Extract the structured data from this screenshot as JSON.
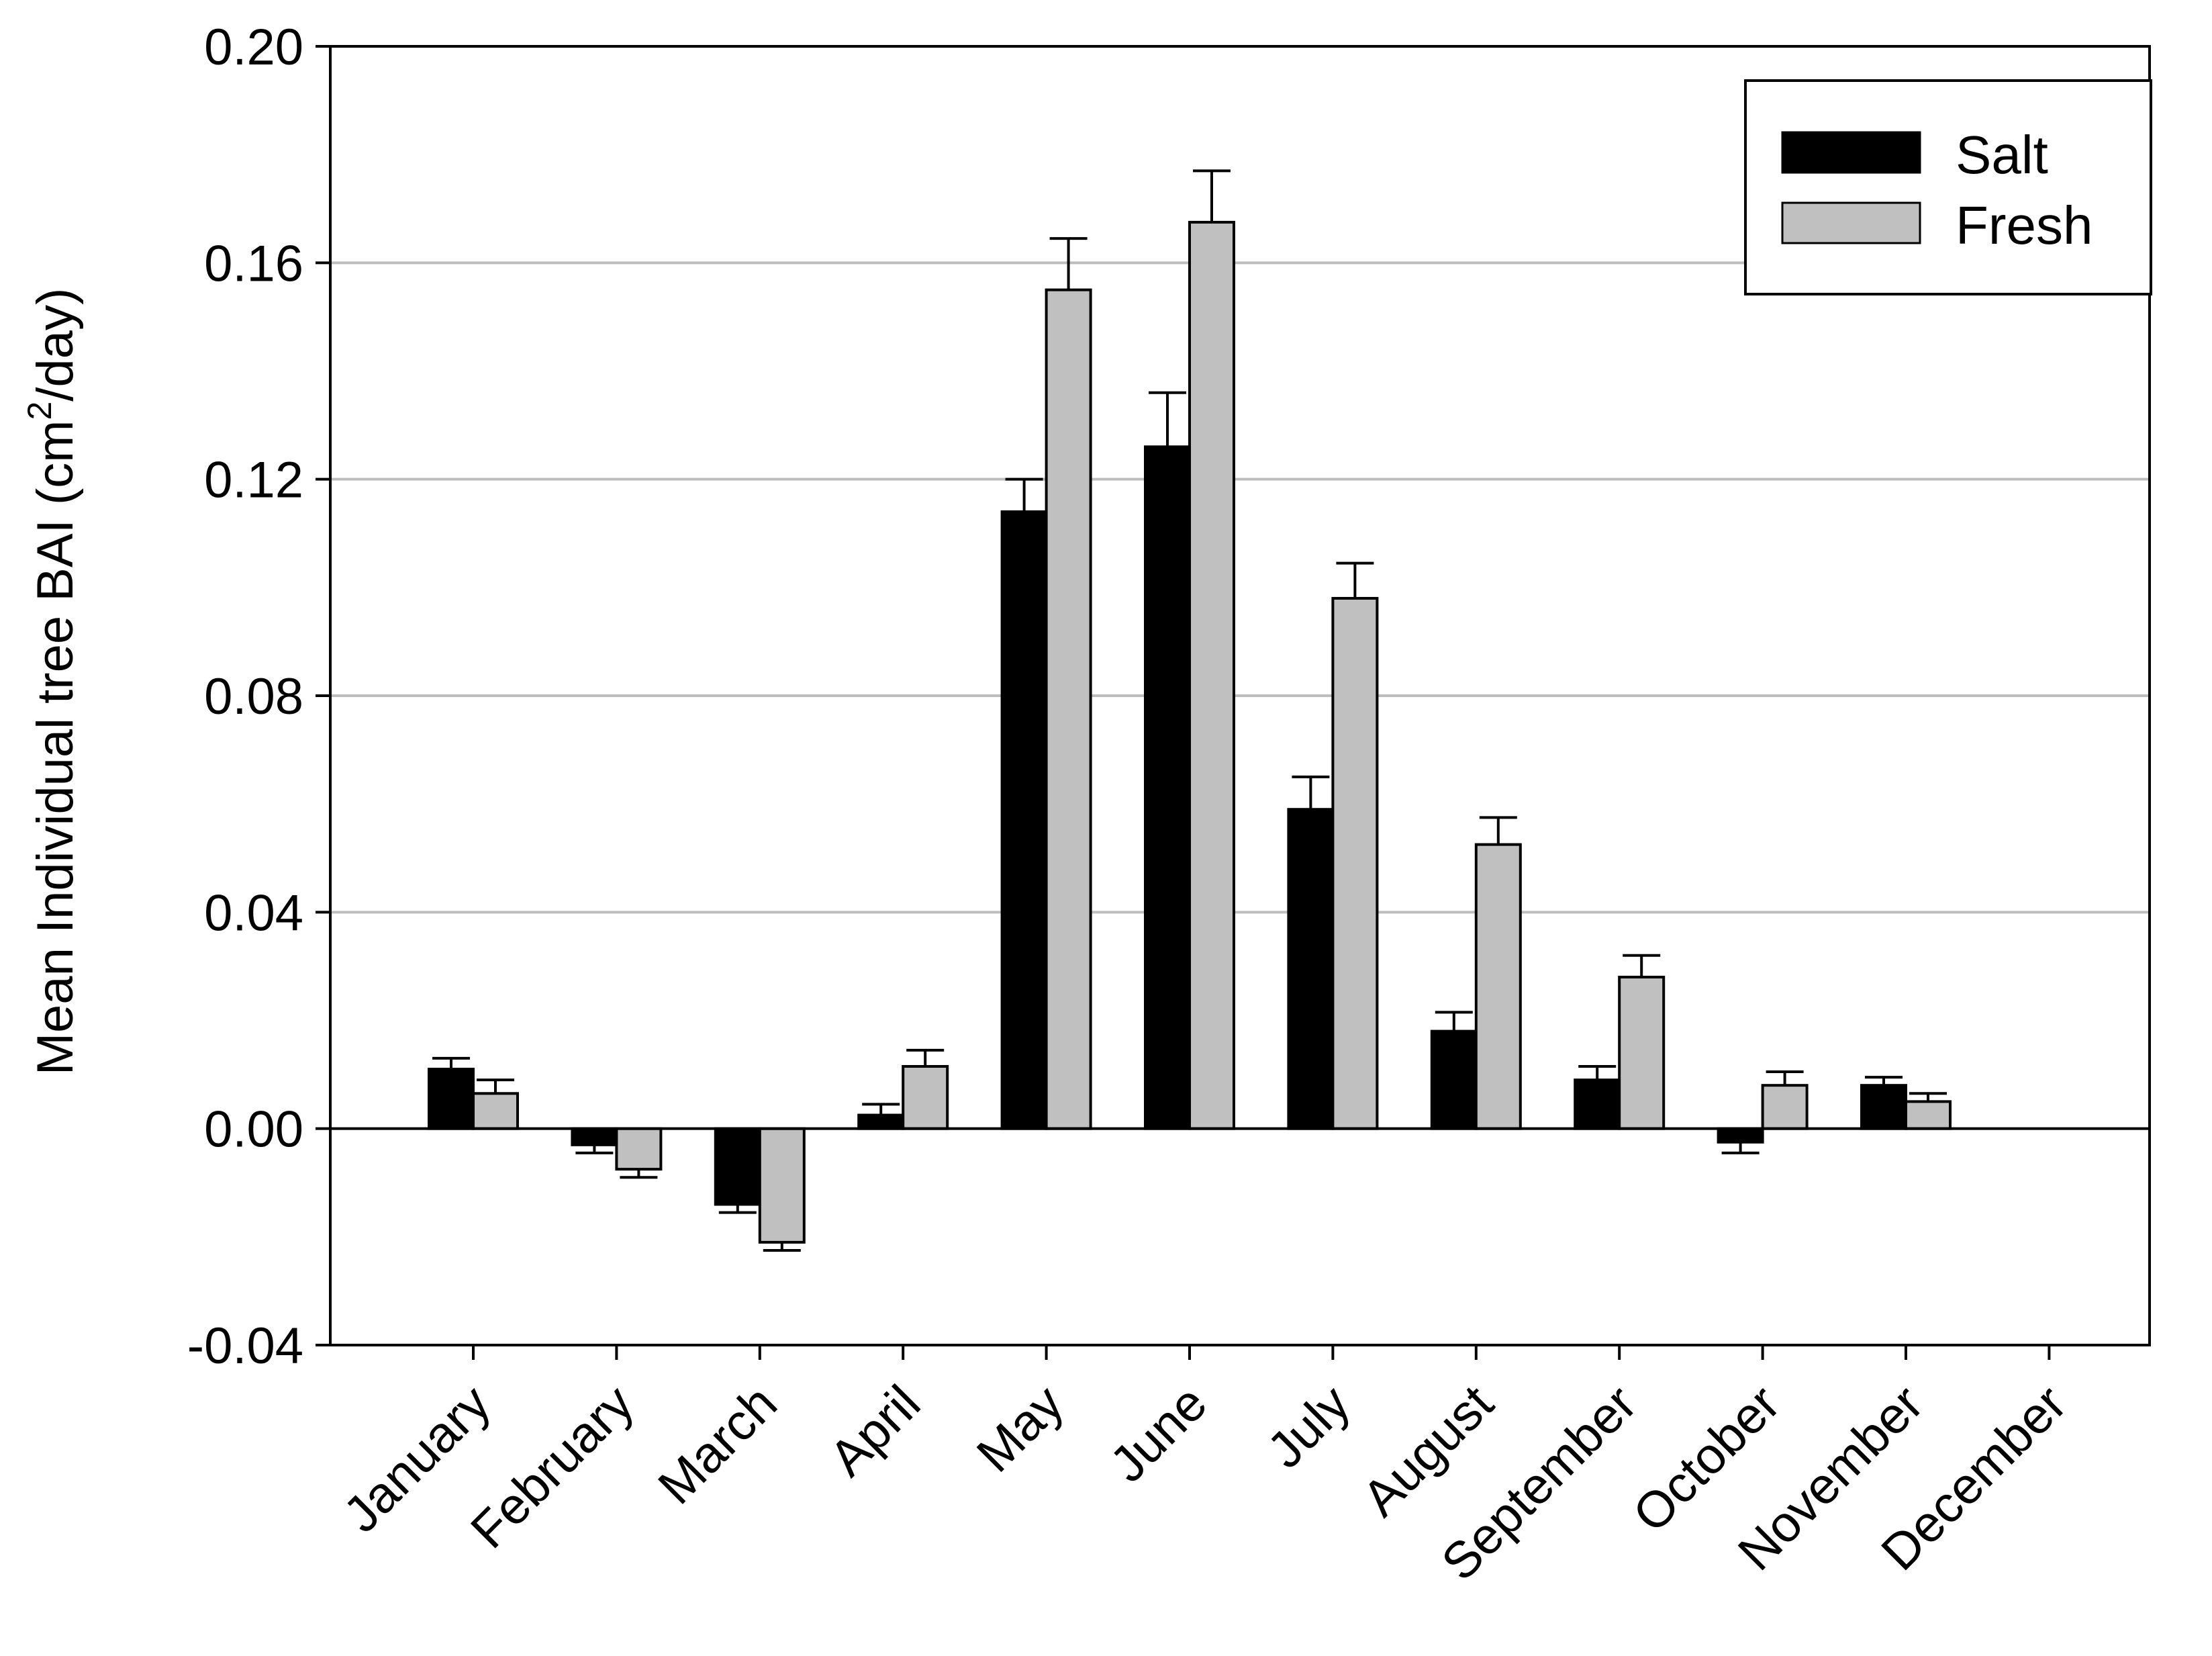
{
  "chart_data": {
    "type": "bar",
    "categories": [
      "January",
      "February",
      "March",
      "April",
      "May",
      "June",
      "July",
      "August",
      "September",
      "October",
      "November",
      "December"
    ],
    "series": [
      {
        "name": "Salt",
        "color": "#000000",
        "values": [
          0.011,
          -0.003,
          -0.014,
          0.0025,
          0.114,
          0.126,
          0.059,
          0.018,
          0.009,
          -0.0025,
          0.008,
          null
        ],
        "errors": [
          0.002,
          0.0015,
          0.0015,
          0.002,
          0.006,
          0.01,
          0.006,
          0.0035,
          0.0025,
          0.002,
          0.0015,
          null
        ]
      },
      {
        "name": "Fresh",
        "color": "#c0c0c0",
        "values": [
          0.0065,
          -0.0075,
          -0.021,
          0.0115,
          0.155,
          0.1675,
          0.098,
          0.0525,
          0.028,
          0.008,
          0.005,
          null
        ],
        "errors": [
          0.0025,
          0.0015,
          0.0015,
          0.003,
          0.0095,
          0.0095,
          0.0065,
          0.005,
          0.004,
          0.0025,
          0.0015,
          null
        ]
      }
    ],
    "ylabel_main": "Mean Individual tree BAI (cm",
    "ylabel_sup": "2",
    "ylabel_end": "/day)",
    "xlabel": "",
    "ylim": [
      -0.04,
      0.2
    ],
    "yticks": [
      "-0.04",
      "0.00",
      "0.04",
      "0.08",
      "0.12",
      "0.16",
      "0.20"
    ],
    "ytick_values": [
      -0.04,
      0,
      0.04,
      0.08,
      0.12,
      0.16,
      0.2
    ],
    "grid": true,
    "legend_position": "top-right"
  }
}
